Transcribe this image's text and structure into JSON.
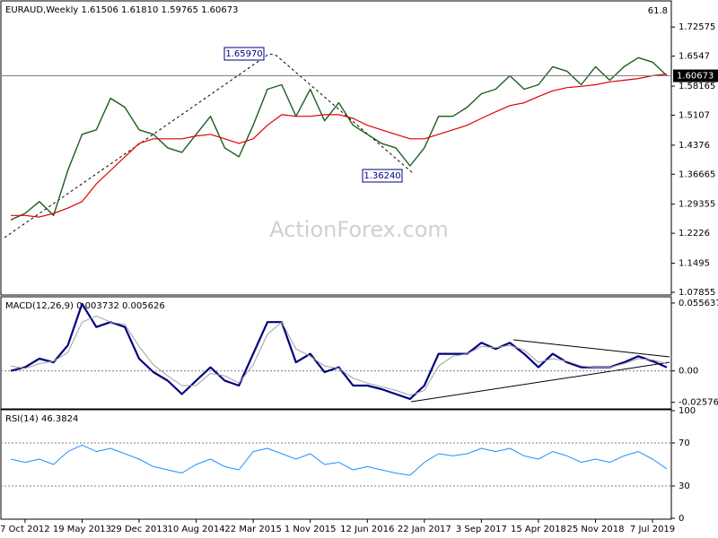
{
  "chart_data": [
    {
      "type": "line",
      "title": "EURAUD,Weekly  1.61506 1.61810 1.59765 1.60673",
      "annotations": [
        "61.8",
        "1.65970",
        "1.36240"
      ],
      "watermark": "ActionForex.com",
      "last_price": {
        "value": 1.60673,
        "label": "1.60673"
      },
      "ylim": [
        1.0742,
        1.7873
      ],
      "yticks": [
        1.72575,
        1.6547,
        1.58165,
        1.5107,
        1.4376,
        1.36665,
        1.29355,
        1.2226,
        1.1495,
        1.07855
      ],
      "series": [
        {
          "color": "#1b5e20",
          "line_width": 1.4,
          "values": [
            1.255,
            1.271,
            1.3,
            1.266,
            1.376,
            1.464,
            1.475,
            1.552,
            1.53,
            1.475,
            1.464,
            1.431,
            1.42,
            1.464,
            1.508,
            1.431,
            1.409,
            1.486,
            1.574,
            1.585,
            1.508,
            1.574,
            1.497,
            1.541,
            1.486,
            1.464,
            1.442,
            1.431,
            1.387,
            1.431,
            1.508,
            1.508,
            1.53,
            1.563,
            1.574,
            1.607,
            1.574,
            1.585,
            1.629,
            1.618,
            1.585,
            1.629,
            1.596,
            1.629,
            1.651,
            1.64,
            1.607
          ]
        },
        {
          "color": "#e00000",
          "line_width": 1.2,
          "values": [
            1.266,
            1.266,
            1.262,
            1.271,
            1.284,
            1.3,
            1.343,
            1.376,
            1.409,
            1.442,
            1.453,
            1.453,
            1.453,
            1.46,
            1.464,
            1.453,
            1.442,
            1.453,
            1.486,
            1.512,
            1.508,
            1.508,
            1.512,
            1.512,
            1.503,
            1.486,
            1.475,
            1.464,
            1.453,
            1.453,
            1.464,
            1.475,
            1.486,
            1.503,
            1.519,
            1.534,
            1.541,
            1.556,
            1.57,
            1.578,
            1.581,
            1.585,
            1.592,
            1.596,
            1.6,
            1.607,
            1.611
          ]
        }
      ]
    },
    {
      "type": "line",
      "title": "MACD(12,26,9) 0.003732 0.005626",
      "ylim": [
        -0.0304,
        0.06
      ],
      "yticks": [
        0.055637,
        {
          "value": 0,
          "label": "0.00"
        },
        -0.02576
      ],
      "levels": [
        0
      ],
      "series": [
        {
          "color": "#000080",
          "line_width": 2.2,
          "values": [
            0,
            0.003,
            0.01,
            0.007,
            0.021,
            0.055,
            0.036,
            0.04,
            0.036,
            0.01,
            -0.001,
            -0.008,
            -0.019,
            -0.008,
            0.003,
            -0.008,
            -0.012,
            0.014,
            0.04,
            0.04,
            0.007,
            0.014,
            -0.001,
            0.003,
            -0.012,
            -0.012,
            -0.015,
            -0.019,
            -0.023,
            -0.012,
            0.014,
            0.014,
            0.014,
            0.023,
            0.018,
            0.023,
            0.014,
            0.003,
            0.014,
            0.007,
            0.003,
            0.003,
            0.003,
            0.007,
            0.012,
            0.008,
            0.003
          ]
        },
        {
          "color": "#a0a0a0",
          "line_width": 1,
          "values": [
            0.004,
            0.002,
            0.006,
            0.008,
            0.015,
            0.04,
            0.045,
            0.04,
            0.038,
            0.02,
            0.005,
            -0.004,
            -0.012,
            -0.012,
            -0.002,
            -0.004,
            -0.01,
            0.005,
            0.03,
            0.04,
            0.018,
            0.012,
            0.004,
            0.002,
            -0.006,
            -0.01,
            -0.013,
            -0.016,
            -0.02,
            -0.016,
            0.004,
            0.012,
            0.014,
            0.02,
            0.019,
            0.021,
            0.017,
            0.007,
            0.01,
            0.008,
            0.004,
            0.003,
            0.003,
            0.006,
            0.01,
            0.009,
            0.006
          ]
        }
      ]
    },
    {
      "type": "line",
      "title": "RSI(14) 46.3824",
      "ylim": [
        0,
        100
      ],
      "yticks": [
        100,
        70,
        30,
        0
      ],
      "levels": [
        30,
        70
      ],
      "categories": [
        null,
        "7 Oct 2012",
        null,
        null,
        null,
        "19 May 2013",
        null,
        null,
        null,
        "29 Dec 2013",
        null,
        null,
        null,
        "10 Aug 2014",
        null,
        null,
        null,
        "22 Mar 2015",
        null,
        null,
        null,
        "1 Nov 2015",
        null,
        null,
        null,
        "12 Jun 2016",
        null,
        null,
        null,
        "22 Jan 2017",
        null,
        null,
        null,
        "3 Sep 2017",
        null,
        null,
        null,
        "15 Apr 2018",
        null,
        null,
        null,
        "25 Nov 2018",
        null,
        null,
        null,
        "7 Jul 2019",
        null
      ],
      "series": [
        {
          "color": "#1e90ff",
          "line_width": 1,
          "values": [
            55,
            52,
            55,
            50,
            62,
            68,
            62,
            65,
            60,
            55,
            48,
            45,
            42,
            50,
            55,
            48,
            45,
            62,
            65,
            60,
            55,
            60,
            50,
            52,
            45,
            48,
            45,
            42,
            40,
            52,
            60,
            58,
            60,
            65,
            62,
            65,
            58,
            55,
            62,
            58,
            52,
            55,
            52,
            58,
            62,
            55,
            46
          ]
        }
      ]
    }
  ]
}
